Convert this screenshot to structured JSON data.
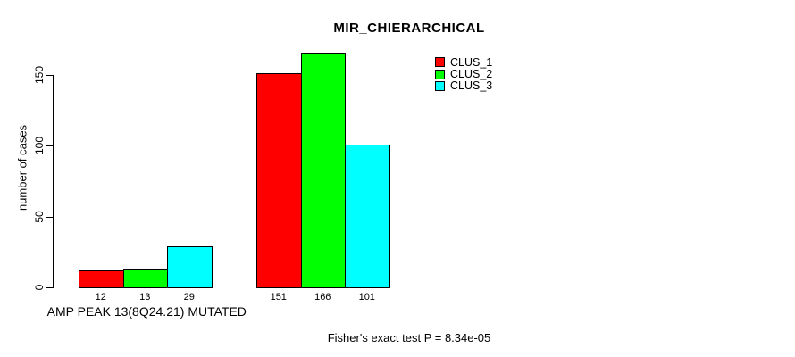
{
  "title": "MIR_CHIERARCHICAL",
  "y_axis": {
    "label": "number of cases",
    "tick_values": [
      0,
      50,
      100,
      150
    ],
    "max": 150
  },
  "x_axis": {
    "label": "AMP PEAK 13(8Q24.21) MUTATED"
  },
  "legend": {
    "items": [
      {
        "label": "CLUS_1",
        "color": "#ff0000"
      },
      {
        "label": "CLUS_2",
        "color": "#00ff00"
      },
      {
        "label": "CLUS_3",
        "color": "#00ffff"
      }
    ]
  },
  "footer": {
    "text": "Fisher's exact test P = 8.34e-05"
  },
  "chart_data": {
    "type": "bar",
    "title": "MIR_CHIERARCHICAL",
    "xlabel": "",
    "ylabel": "number of cases",
    "ylim": [
      0,
      150
    ],
    "grid": false,
    "legend_position": "top-right",
    "group_labels": [
      "AMP PEAK 13(8Q24.21) MUTATED",
      ""
    ],
    "series": [
      {
        "name": "CLUS_1",
        "color": "#ff0000",
        "values": [
          12,
          151
        ]
      },
      {
        "name": "CLUS_2",
        "color": "#00ff00",
        "values": [
          13,
          166
        ]
      },
      {
        "name": "CLUS_3",
        "color": "#00ffff",
        "values": [
          29,
          101
        ]
      }
    ],
    "annotation": "Fisher's exact test P = 8.34e-05"
  }
}
